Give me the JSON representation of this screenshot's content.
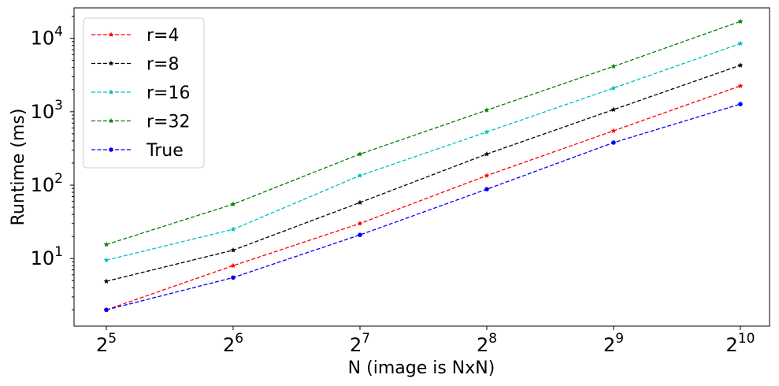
{
  "chart_data": {
    "type": "line",
    "xlabel": "N (image is NxN)",
    "ylabel": "Runtime (ms)",
    "x": [
      32,
      64,
      128,
      256,
      512,
      1024
    ],
    "x_scale": "log2",
    "y_scale": "log10",
    "ylim": [
      1.2,
      26000
    ],
    "xticks": [
      {
        "value": 32,
        "base": "2",
        "exp": "5"
      },
      {
        "value": 64,
        "base": "2",
        "exp": "6"
      },
      {
        "value": 128,
        "base": "2",
        "exp": "7"
      },
      {
        "value": 256,
        "base": "2",
        "exp": "8"
      },
      {
        "value": 512,
        "base": "2",
        "exp": "9"
      },
      {
        "value": 1024,
        "base": "2",
        "exp": "10"
      }
    ],
    "yticks": [
      {
        "value": 10,
        "base": "10",
        "exp": "1"
      },
      {
        "value": 100,
        "base": "10",
        "exp": "2"
      },
      {
        "value": 1000,
        "base": "10",
        "exp": "3"
      },
      {
        "value": 10000,
        "base": "10",
        "exp": "4"
      }
    ],
    "grid": false,
    "legend_position": "top-left",
    "series": [
      {
        "name": "r=4",
        "color": "#ff0000",
        "marker": "star",
        "values": [
          2.0,
          8.0,
          30,
          135,
          550,
          2250
        ]
      },
      {
        "name": "r=8",
        "color": "#000000",
        "marker": "star",
        "values": [
          4.9,
          13,
          58,
          265,
          1070,
          4300
        ]
      },
      {
        "name": "r=16",
        "color": "#00bfbf",
        "marker": "star",
        "values": [
          9.5,
          25,
          135,
          530,
          2100,
          8500
        ]
      },
      {
        "name": "r=32",
        "color": "#008000",
        "marker": "star",
        "values": [
          15.5,
          55,
          265,
          1050,
          4150,
          17000
        ]
      },
      {
        "name": "True",
        "color": "#0000ff",
        "marker": "circle",
        "values": [
          2.0,
          5.5,
          21,
          88,
          380,
          1270
        ]
      }
    ]
  }
}
